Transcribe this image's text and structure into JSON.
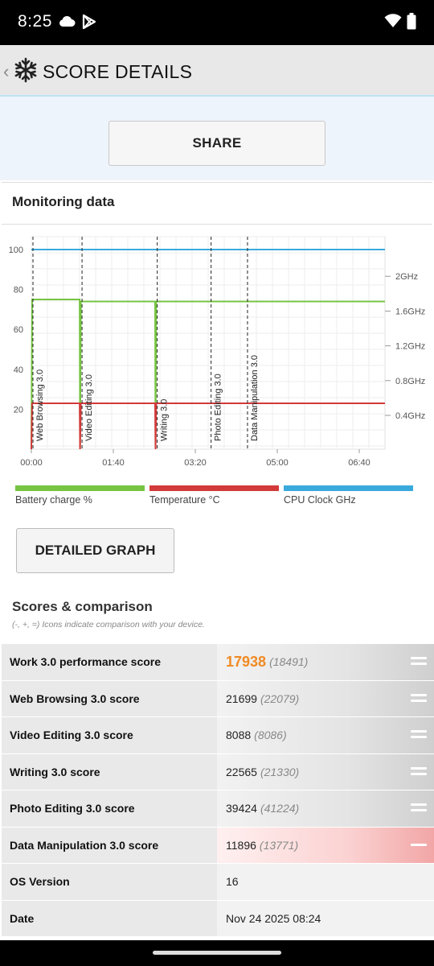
{
  "status": {
    "time": "8:25"
  },
  "header": {
    "title": "SCORE DETAILS"
  },
  "share": {
    "label": "SHARE"
  },
  "monitoring": {
    "title": "Monitoring data",
    "detailed_label": "DETAILED GRAPH",
    "legend": [
      {
        "label": "Battery charge %",
        "color": "#76c442"
      },
      {
        "label": "Temperature °C",
        "color": "#d33a3a"
      },
      {
        "label": "CPU Clock GHz",
        "color": "#3aa9dc"
      }
    ]
  },
  "chart_data": {
    "type": "line",
    "title": "",
    "xlabel": "",
    "ylabel": "",
    "x_tick_labels": [
      "00:00",
      "01:40",
      "03:20",
      "05:00",
      "06:40"
    ],
    "left_ticks": [
      20,
      40,
      60,
      80,
      100
    ],
    "right_tick_labels": [
      "0.4GHz",
      "0.8GHz",
      "1.2GHz",
      "1.6GHz",
      "2GHz"
    ],
    "ylim": [
      0,
      100
    ],
    "xlim_seconds": [
      0,
      26800
    ],
    "markers": [
      {
        "label": "Web Browsing 3.0",
        "t": 0
      },
      {
        "label": "Video Editing 3.0",
        "t": 3720
      },
      {
        "label": "Writing 3.0",
        "t": 9420
      },
      {
        "label": "Photo Editing 3.0",
        "t": 13500
      },
      {
        "label": "Data Manipulation 3.0",
        "t": 16260
      }
    ],
    "series": [
      {
        "name": "Battery charge %",
        "points": [
          [
            0,
            0
          ],
          [
            60,
            75
          ],
          [
            3660,
            75
          ],
          [
            3690,
            0
          ],
          [
            3750,
            74
          ],
          [
            9380,
            74
          ],
          [
            9410,
            0
          ],
          [
            9460,
            74
          ],
          [
            26800,
            74
          ]
        ]
      },
      {
        "name": "Temperature °C",
        "points": [
          [
            0,
            0
          ],
          [
            60,
            23
          ],
          [
            3660,
            23
          ],
          [
            3690,
            0
          ],
          [
            3750,
            23
          ],
          [
            9380,
            23
          ],
          [
            9410,
            0
          ],
          [
            9460,
            23
          ],
          [
            26800,
            23
          ]
        ]
      },
      {
        "name": "CPU Clock GHz",
        "points": [
          [
            0,
            100
          ],
          [
            26800,
            100
          ]
        ]
      }
    ]
  },
  "scores": {
    "title": "Scores & comparison",
    "subtitle": "(-, +, =) Icons indicate comparison with your device.",
    "rows": [
      {
        "name": "Work 3.0 performance score",
        "value": "17938",
        "ref": "(18491)",
        "mark": "equal",
        "main": true
      },
      {
        "name": "Web Browsing 3.0 score",
        "value": "21699",
        "ref": "(22079)",
        "mark": "equal"
      },
      {
        "name": "Video Editing 3.0 score",
        "value": "8088",
        "ref": "(8086)",
        "mark": "equal"
      },
      {
        "name": "Writing 3.0 score",
        "value": "22565",
        "ref": "(21330)",
        "mark": "equal"
      },
      {
        "name": "Photo Editing 3.0 score",
        "value": "39424",
        "ref": "(41224)",
        "mark": "equal"
      },
      {
        "name": "Data Manipulation 3.0 score",
        "value": "11896",
        "ref": "(13771)",
        "mark": "minus"
      },
      {
        "name": "OS Version",
        "value": "16",
        "ref": "",
        "mark": "none"
      },
      {
        "name": "Date",
        "value": "Nov 24 2025 08:24",
        "ref": "",
        "mark": "none"
      }
    ]
  }
}
